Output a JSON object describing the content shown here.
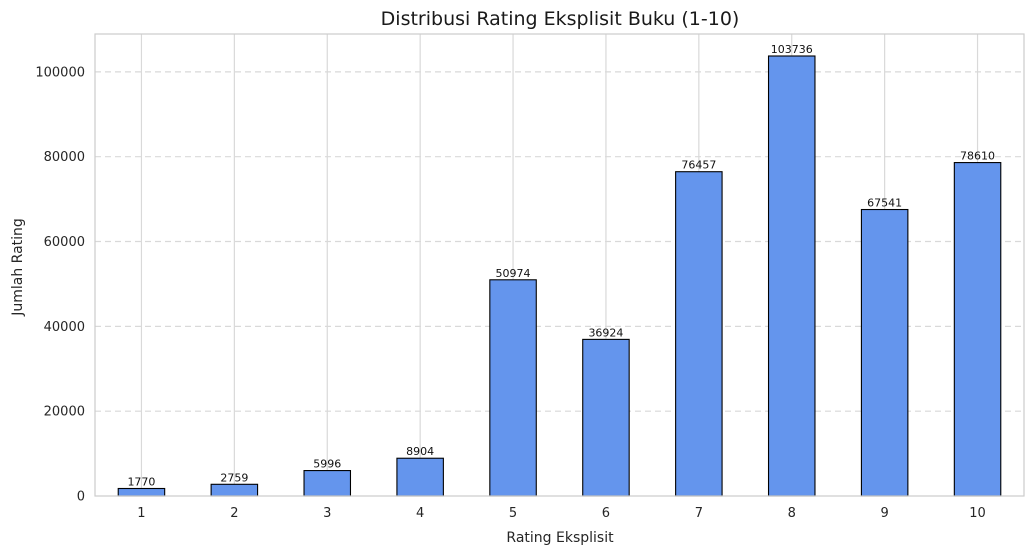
{
  "chart_data": {
    "type": "bar",
    "title": "Distribusi Rating Eksplisit Buku (1-10)",
    "xlabel": "Rating Eksplisit",
    "ylabel": "Jumlah Rating",
    "categories": [
      "1",
      "2",
      "3",
      "4",
      "5",
      "6",
      "7",
      "8",
      "9",
      "10"
    ],
    "values": [
      1770,
      2759,
      5996,
      8904,
      50974,
      36924,
      76457,
      103736,
      67541,
      78610
    ],
    "ylim": [
      0,
      108923
    ],
    "yticks": [
      0,
      20000,
      40000,
      60000,
      80000,
      100000
    ],
    "grid": true,
    "bar_color": "#6495ED",
    "bar_edge_color": "#000000"
  }
}
